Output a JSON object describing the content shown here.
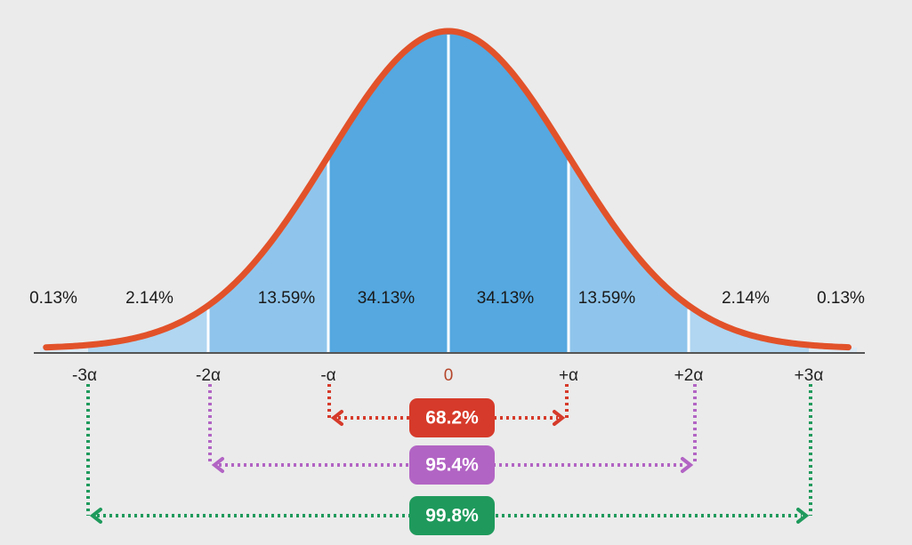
{
  "segments": [
    {
      "label": "0.13%"
    },
    {
      "label": "2.14%"
    },
    {
      "label": "13.59%"
    },
    {
      "label": "34.13%"
    },
    {
      "label": "34.13%"
    },
    {
      "label": "13.59%"
    },
    {
      "label": "2.14%"
    },
    {
      "label": "0.13%"
    }
  ],
  "axis_labels": [
    "-3α",
    "-2α",
    "-α",
    "0",
    "+α",
    "+2α",
    "+3α"
  ],
  "ranges": [
    {
      "label": "68.2%"
    },
    {
      "label": "95.4%"
    },
    {
      "label": "99.8%"
    }
  ]
}
